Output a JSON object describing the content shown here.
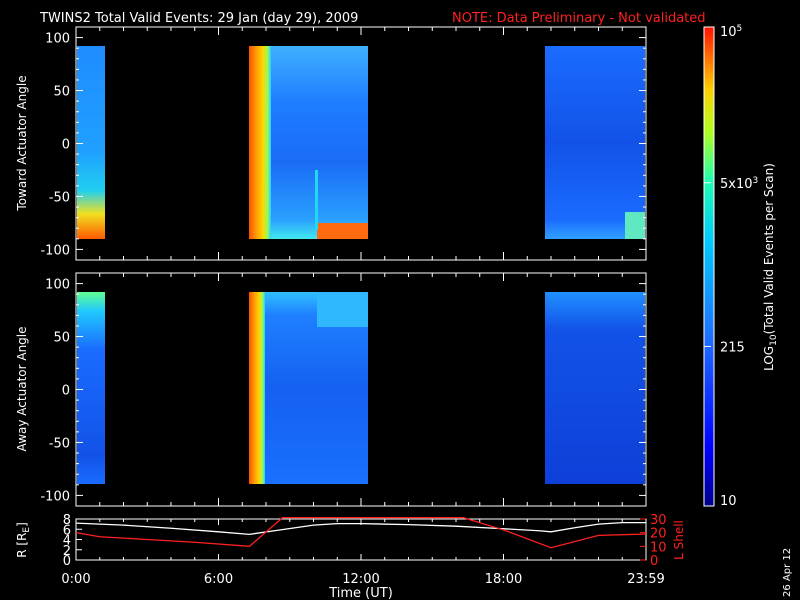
{
  "header": {
    "title": "TWINS2  Total Valid Events: 29 Jan (day  29), 2009",
    "note": "NOTE: Data Preliminary - Not validated"
  },
  "colorbar": {
    "label": "LOG10(Total Valid  Events per Scan)",
    "label_main": "LOG",
    "label_sub": "10",
    "label_rest": "(Total Valid  Events per Scan)",
    "ticks": [
      {
        "value": 10,
        "text": "10"
      },
      {
        "value": 215,
        "text": "215"
      },
      {
        "value": 5000,
        "text": "5x10^3",
        "base": "5x10",
        "exp": "3"
      },
      {
        "value": 100000,
        "text": "10^5",
        "base": "10",
        "exp": "5"
      }
    ],
    "range": [
      10,
      100000
    ],
    "scale": "log",
    "colormap": "rainbow (blue-cyan-yellow-red)"
  },
  "footer": {
    "stamp": "26 Apr 12",
    "xlabel": "Time (UT)"
  },
  "chart_data": [
    {
      "type": "heatmap",
      "panel": "top",
      "ylabel": "Toward Actuator Angle",
      "ylim": [
        -110,
        110
      ],
      "yticks": [
        100,
        50,
        0,
        -50,
        -100
      ],
      "data_y_range": [
        -88,
        88
      ],
      "xlim": [
        "0:00",
        "24:00"
      ],
      "xticks": [
        "0:00",
        "6:00",
        "12:00",
        "18:00",
        "23:59"
      ],
      "data_blocks": [
        {
          "start": "0:00",
          "end": "1:12",
          "description_counts": "mostly ~100-300, high near -70 to -88"
        },
        {
          "start": "7:30",
          "end": "12:15",
          "description_counts": "very high ~5e4 at 7:30-8:00, low elsewhere, high near -80 after 10:15"
        },
        {
          "start": "19:45",
          "end": "24:00",
          "description_counts": "low ~30-100, rising at bottom near 23:30"
        }
      ]
    },
    {
      "type": "heatmap",
      "panel": "middle",
      "ylabel": "Away Actuator Angle",
      "ylim": [
        -110,
        110
      ],
      "yticks": [
        100,
        50,
        0,
        -50,
        -100
      ],
      "data_y_range": [
        -88,
        88
      ],
      "xlim": [
        "0:00",
        "24:00"
      ],
      "xticks": [
        "0:00",
        "6:00",
        "12:00",
        "18:00",
        "23:59"
      ],
      "data_blocks": [
        {
          "start": "0:00",
          "end": "1:12"
        },
        {
          "start": "7:30",
          "end": "12:15"
        },
        {
          "start": "19:45",
          "end": "24:00"
        }
      ]
    },
    {
      "type": "line",
      "panel": "bottom",
      "ylabel_left": "R [R",
      "ylabel_left_sub": "E",
      "ylabel_left_end": "]",
      "ylabel_right": "L Shell",
      "ylim_left": [
        0,
        8
      ],
      "yticks_left": [
        0,
        2,
        4,
        6,
        8
      ],
      "ylim_right": [
        0,
        30
      ],
      "yticks_right": [
        0,
        10,
        20,
        30
      ],
      "xlim": [
        0,
        24
      ],
      "xticks": [
        "0:00",
        "6:00",
        "12:00",
        "18:00",
        "23:59"
      ],
      "xlabel": "Time (UT)",
      "series": [
        {
          "color": "#ffffff",
          "axis": "left",
          "x": [
            0,
            2,
            4,
            6,
            7.3,
            8.5,
            10,
            11,
            12,
            14,
            16,
            18,
            19.5,
            20,
            21,
            22,
            23,
            24
          ],
          "y": [
            7.2,
            6.8,
            6.2,
            5.5,
            5.0,
            5.8,
            6.8,
            7.1,
            7.1,
            6.9,
            6.6,
            6.1,
            5.7,
            5.5,
            6.3,
            7.0,
            7.3,
            7.3
          ]
        },
        {
          "color": "#ff2020",
          "axis": "right",
          "x": [
            0,
            1,
            3,
            5,
            7.3,
            8.7,
            16.3,
            18,
            20,
            22,
            24
          ],
          "y": [
            20,
            17,
            15,
            13,
            10,
            31,
            31,
            22,
            9,
            18,
            19
          ]
        }
      ]
    }
  ]
}
